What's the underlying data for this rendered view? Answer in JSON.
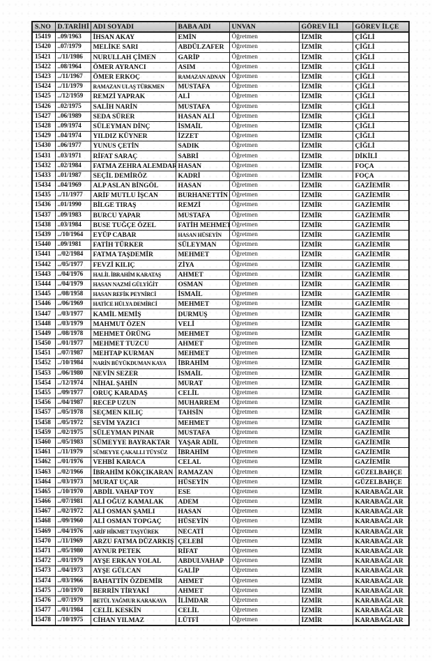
{
  "table": {
    "columns": [
      "S.NO",
      "D.TARİHİ",
      "ADI SOYADI",
      "BABA ADI",
      "UNVAN",
      "GÖREV İLİ",
      "GÖREV İLÇE"
    ],
    "rows": [
      [
        "15419",
        "..09/1963",
        "İHSAN AKAY",
        "EMİN",
        "Öğretmen",
        "İZMİR",
        "ÇİĞLİ"
      ],
      [
        "15420",
        "..07/1979",
        "MELİKE SARI",
        "ABDÜLZAFER",
        "Öğretmen",
        "İZMİR",
        "ÇİĞLİ"
      ],
      [
        "15421",
        "../11/1986",
        "NURULLAH ÇİMEN",
        "GARİP",
        "Öğretmen",
        "İZMİR",
        "ÇİĞLİ"
      ],
      [
        "15422",
        "..08/1964",
        "ÖMER AYRANCI",
        "ASIM",
        "Öğretmen",
        "İZMİR",
        "ÇİĞLİ"
      ],
      [
        "15423",
        "../11/1967",
        "ÖMER ERKOÇ",
        "RAMAZAN ADNAN",
        "Öğretmen",
        "İZMİR",
        "ÇİĞLİ"
      ],
      [
        "15424",
        "../11/1979",
        "RAMAZAN ULAŞ TÜRKMEN",
        "MUSTAFA",
        "Öğretmen",
        "İZMİR",
        "ÇİĞLİ"
      ],
      [
        "15425",
        "../12/1959",
        "REMZİ YAPRAK",
        "ALİ",
        "Öğretmen",
        "İZMİR",
        "ÇİĞLİ"
      ],
      [
        "15426",
        "..02/1975",
        "SALİH NARİN",
        "MUSTAFA",
        "Öğretmen",
        "İZMİR",
        "ÇİĞLİ"
      ],
      [
        "15427",
        "..06/1989",
        "SEDA SÜRER",
        "HASAN ALİ",
        "Öğretmen",
        "İZMİR",
        "ÇİĞLİ"
      ],
      [
        "15428",
        "..09/1974",
        "SÜLEYMAN DİNÇ",
        "İSMAİL",
        "Öğretmen",
        "İZMİR",
        "ÇİĞLİ"
      ],
      [
        "15429",
        "..04/1974",
        "YILDIZ KÜYNER",
        "İZZET",
        "Öğretmen",
        "İZMİR",
        "ÇİĞLİ"
      ],
      [
        "15430",
        "..06/1977",
        "YUNUS ÇETİN",
        "SADIK",
        "Öğretmen",
        "İZMİR",
        "ÇİĞLİ"
      ],
      [
        "15431",
        "..03/1971",
        "RİFAT SARAÇ",
        "SABRİ",
        "Öğretmen",
        "İZMİR",
        "DİKİLİ"
      ],
      [
        "15432",
        "..02/1984",
        "FATMA ZEHRA ALEMDAR",
        "HASAN",
        "Öğretmen",
        "İZMİR",
        "FOÇA"
      ],
      [
        "15433",
        "..01/1987",
        "SEÇİL DEMİRÖZ",
        "KADRİ",
        "Öğretmen",
        "İZMİR",
        "FOÇA"
      ],
      [
        "15434",
        "..04/1969",
        "ALP ASLAN BİNGÖL",
        "HASAN",
        "Öğretmen",
        "İZMİR",
        "GAZİEMİR"
      ],
      [
        "15435",
        "../11/1977",
        "ARİF MUTLU İŞCAN",
        "BURHANETTİN",
        "Öğretmen",
        "İZMİR",
        "GAZİEMİR"
      ],
      [
        "15436",
        "..01/1990",
        "BİLGE TIRAŞ",
        "REMZİ",
        "Öğretmen",
        "İZMİR",
        "GAZİEMİR"
      ],
      [
        "15437",
        "..09/1983",
        "BURCU YAPAR",
        "MUSTAFA",
        "Öğretmen",
        "İZMİR",
        "GAZİEMİR"
      ],
      [
        "15438",
        "..03/1984",
        "BUSE TUĞÇE ÖZEL",
        "FATİH MEHMET",
        "Öğretmen",
        "İZMİR",
        "GAZİEMİR"
      ],
      [
        "15439",
        "../10/1964",
        "EYÜP CABAR",
        "HASAN HÜSEYİN",
        "Öğretmen",
        "İZMİR",
        "GAZİEMİR"
      ],
      [
        "15440",
        "..09/1981",
        "FATİH TÜRKER",
        "SÜLEYMAN",
        "Öğretmen",
        "İZMİR",
        "GAZİEMİR"
      ],
      [
        "15441",
        "../02/1984",
        "FATMA TAŞDEMİR",
        "MEHMET",
        "Öğretmen",
        "İZMİR",
        "GAZİEMİR"
      ],
      [
        "15442",
        "../05/1977",
        "FEVZİ KILIÇ",
        "ZİYA",
        "Öğretmen",
        "İZMİR",
        "GAZİEMİR"
      ],
      [
        "15443",
        "../04/1976",
        "HALİL İBRAHİM KARATAŞ",
        "AHMET",
        "Öğretmen",
        "İZMİR",
        "GAZİEMİR"
      ],
      [
        "15444",
        "../04/1979",
        "HASAN NAZMİ GÜLYİĞİT",
        "OSMAN",
        "Öğretmen",
        "İZMİR",
        "GAZİEMİR"
      ],
      [
        "15445",
        "../08/1958",
        "HASAN REFİK PEYNİRCİ",
        "İSMAİL",
        "Öğretmen",
        "İZMİR",
        "GAZİEMİR"
      ],
      [
        "15446",
        "../06/1969",
        "HATİCE HÜLYA DEMİRCİ",
        "MEHMET",
        "Öğretmen",
        "İZMİR",
        "GAZİEMİR"
      ],
      [
        "15447",
        "../03/1977",
        "KAMİL MEMİŞ",
        "DURMUŞ",
        "Öğretmen",
        "İZMİR",
        "GAZİEMİR"
      ],
      [
        "15448",
        "../03/1979",
        "MAHMUT ÖZEN",
        "VELİ",
        "Öğretmen",
        "İZMİR",
        "GAZİEMİR"
      ],
      [
        "15449",
        "../08/1978",
        "MEHMET ÖRÜNG",
        "MEHMET",
        "Öğretmen",
        "İZMİR",
        "GAZİEMİR"
      ],
      [
        "15450",
        "../01/1977",
        "MEHMET TUZCU",
        "AHMET",
        "Öğretmen",
        "İZMİR",
        "GAZİEMİR"
      ],
      [
        "15451",
        "../07/1987",
        "MEHTAP KURMAN",
        "MEHMET",
        "Öğretmen",
        "İZMİR",
        "GAZİEMİR"
      ],
      [
        "15452",
        "../10/1984",
        "NARİN BÜYÜKDUMAN KAYA",
        "İBRAHİM",
        "Öğretmen",
        "İZMİR",
        "GAZİEMİR"
      ],
      [
        "15453",
        "../06/1980",
        "NEVİN SEZER",
        "İSMAİL",
        "Öğretmen",
        "İZMİR",
        "GAZİEMİR"
      ],
      [
        "15454",
        "../12/1974",
        "NİHAL ŞAHİN",
        "MURAT",
        "Öğretmen",
        "İZMİR",
        "GAZİEMİR"
      ],
      [
        "15455",
        "../09/1977",
        "ORUÇ KARADAŞ",
        "CELİL",
        "Öğretmen",
        "İZMİR",
        "GAZİEMİR"
      ],
      [
        "15456",
        "../04/1987",
        "RECEP UZUN",
        "MUHARREM",
        "Öğretmen",
        "İZMİR",
        "GAZİEMİR"
      ],
      [
        "15457",
        "../05/1978",
        "SEÇMEN KILIÇ",
        "TAHSİN",
        "Öğretmen",
        "İZMİR",
        "GAZİEMİR"
      ],
      [
        "15458",
        "../05/1972",
        "SEVİM YAZICI",
        "MEHMET",
        "Öğretmen",
        "İZMİR",
        "GAZİEMİR"
      ],
      [
        "15459",
        "../02/1975",
        "SÜLEYMAN PINAR",
        "MUSTAFA",
        "Öğretmen",
        "İZMİR",
        "GAZİEMİR"
      ],
      [
        "15460",
        "../05/1983",
        "SÜMEYYE BAYRAKTAR",
        "YAŞAR ADİL",
        "Öğretmen",
        "İZMİR",
        "GAZİEMİR"
      ],
      [
        "15461",
        "../11/1979",
        "SÜMEYYE ÇAKALLI TÜYSÜZ",
        "İBRAHİM",
        "Öğretmen",
        "İZMİR",
        "GAZİEMİR"
      ],
      [
        "15462",
        "../01/1976",
        "VEHBİ KARACA",
        "CELAL",
        "Öğretmen",
        "İZMİR",
        "GAZİEMİR"
      ],
      [
        "15463",
        "../02/1966",
        "İBRAHİM KÖKÇIKARAN",
        "RAMAZAN",
        "Öğretmen",
        "İZMİR",
        "GÜZELBAHÇE"
      ],
      [
        "15464",
        "../03/1973",
        "MURAT UÇAR",
        "HÜSEYİN",
        "Öğretmen",
        "İZMİR",
        "GÜZELBAHÇE"
      ],
      [
        "15465",
        "../10/1970",
        "ABDİL VAHAP TOY",
        "ESE",
        "Öğretmen",
        "İZMİR",
        "KARABAĞLAR"
      ],
      [
        "15466",
        "../07/1981",
        "ALİ OĞUZ KAMALAK",
        "ADEM",
        "Öğretmen",
        "İZMİR",
        "KARABAĞLAR"
      ],
      [
        "15467",
        "../02/1972",
        "ALİ OSMAN ŞAMLI",
        "HASAN",
        "Öğretmen",
        "İZMİR",
        "KARABAĞLAR"
      ],
      [
        "15468",
        "../09/1960",
        "ALİ OSMAN TOPGAÇ",
        "HÜSEYİN",
        "Öğretmen",
        "İZMİR",
        "KARABAĞLAR"
      ],
      [
        "15469",
        "../04/1976",
        "ARİF HİKMET TAŞYÜREK",
        "NECATİ",
        "Öğretmen",
        "İZMİR",
        "KARABAĞLAR"
      ],
      [
        "15470",
        "../11/1969",
        "ARZU FATMA DÜZARKIŞ",
        "ÇELEBİ",
        "Öğretmen",
        "İZMİR",
        "KARABAĞLAR"
      ],
      [
        "15471",
        "../05/1980",
        "AYNUR PETEK",
        "RİFAT",
        "Öğretmen",
        "İZMİR",
        "KARABAĞLAR"
      ],
      [
        "15472",
        "../01/1979",
        "AYŞE ERKAN YOLAL",
        "ABDULVAHAP",
        "Öğretmen",
        "İZMİR",
        "KARABAĞLAR"
      ],
      [
        "15473",
        "../04/1973",
        "AYŞE GÜLCAN",
        "GALİP",
        "Öğretmen",
        "İZMİR",
        "KARABAĞLAR"
      ],
      [
        "15474",
        "../03/1966",
        "BAHATTİN ÖZDEMİR",
        "AHMET",
        "Öğretmen",
        "İZMİR",
        "KARABAĞLAR"
      ],
      [
        "15475",
        "../10/1970",
        "BERRİN TİRYAKİ",
        "AHMET",
        "Öğretmen",
        "İZMİR",
        "KARABAĞLAR"
      ],
      [
        "15476",
        "../07/1979",
        "BETÜL YAĞMUR KARAKAYA",
        "İLİMDAR",
        "Öğretmen",
        "İZMİR",
        "KARABAĞLAR"
      ],
      [
        "15477",
        "../01/1984",
        "CELİL KESKİN",
        "CELİL",
        "Öğretmen",
        "İZMİR",
        "KARABAĞLAR"
      ],
      [
        "15478",
        "../10/1975",
        "CİHAN YILMAZ",
        "LÜTFİ",
        "Öğretmen",
        "İZMİR",
        "KARABAĞLAR"
      ]
    ],
    "colors": {
      "header_bg": "#cccccc",
      "border": "#1e1e1e",
      "text": "#141414",
      "page_bg": "#fefefe"
    }
  }
}
